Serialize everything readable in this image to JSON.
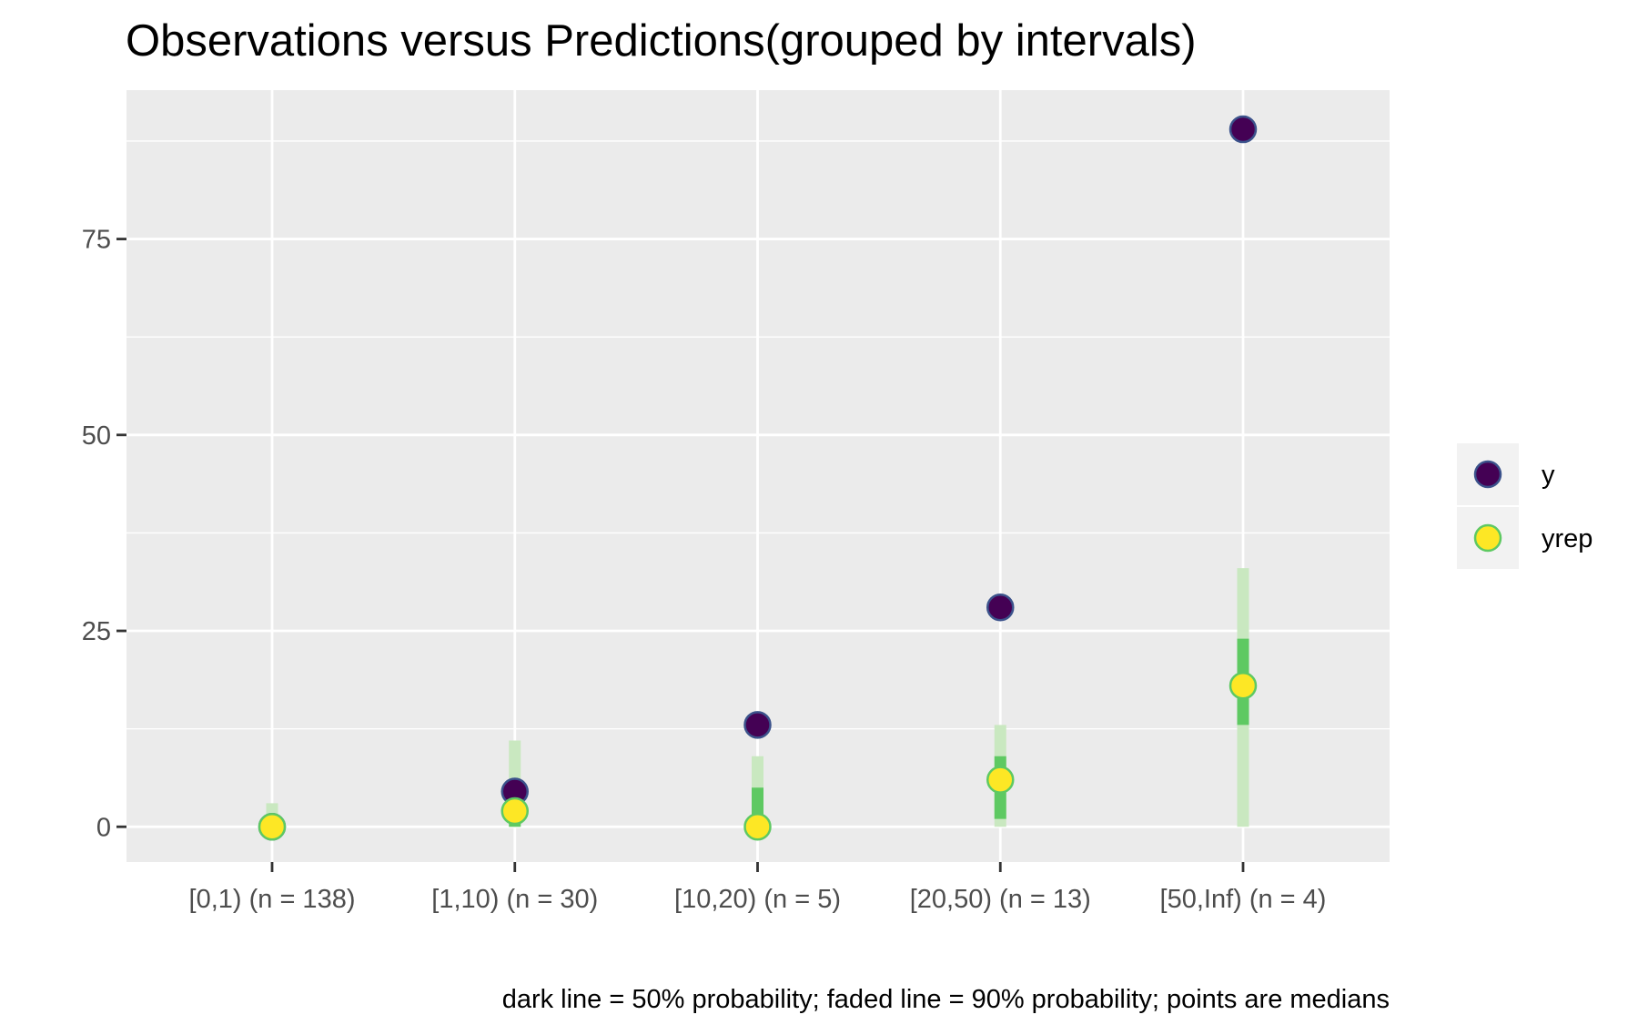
{
  "chart_data": {
    "type": "scatter",
    "title": "Observations versus Predictions(grouped by intervals)",
    "caption": "dark line = 50% probability; faded line = 90% probability; points are medians",
    "xlabel": "",
    "ylabel": "",
    "categories": [
      "[0,1) (n = 138)",
      "[1,10) (n = 30)",
      "[10,20) (n = 5)",
      "[20,50) (n = 13)",
      "[50,Inf) (n = 4)"
    ],
    "ylim": [
      -4.5,
      94
    ],
    "yticks": [
      0,
      25,
      50,
      75
    ],
    "ytick_labels": [
      "0",
      "25",
      "50",
      "75"
    ],
    "grid": true,
    "legend": {
      "position": "right",
      "entries": [
        "y",
        "yrep"
      ]
    },
    "series": [
      {
        "name": "y",
        "values": [
          0,
          4.5,
          13,
          28,
          89
        ]
      },
      {
        "name": "yrep",
        "values": [
          0,
          2,
          0,
          6,
          18
        ]
      }
    ],
    "intervals_90": [
      [
        0,
        3
      ],
      [
        0,
        11
      ],
      [
        0,
        9
      ],
      [
        0,
        13
      ],
      [
        0,
        33
      ]
    ],
    "intervals_50": [
      [
        0,
        0
      ],
      [
        0,
        3
      ],
      [
        0,
        5
      ],
      [
        1,
        9
      ],
      [
        13,
        24
      ]
    ],
    "colors": {
      "panel": "#ebebeb",
      "grid": "#ffffff",
      "y_fill": "#440154",
      "y_stroke": "#3b528b",
      "yrep_fill": "#fde725",
      "yrep_stroke": "#5ec962",
      "interval_50": "#5ec962",
      "interval_90": "#c9e8c0",
      "legend_key": "#f2f2f2"
    }
  }
}
